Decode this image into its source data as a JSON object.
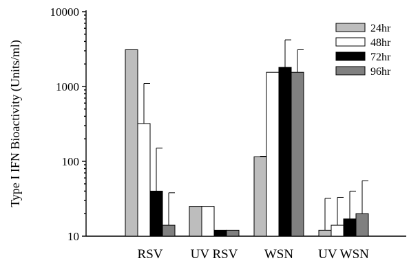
{
  "chart_data": {
    "type": "bar",
    "title": "",
    "xlabel": "",
    "ylabel": "Type I IFN Bioactivity (Units/ml)",
    "y_scale": "log",
    "ylim": [
      10,
      10000
    ],
    "y_ticks": [
      10,
      100,
      1000,
      10000
    ],
    "y_tick_labels": [
      "10",
      "100",
      "1000",
      "10000"
    ],
    "grid": false,
    "legend_position": "top-right",
    "categories": [
      "RSV",
      "UV RSV",
      "WSN",
      "UV WSN"
    ],
    "series": [
      {
        "name": "24hr",
        "color": "#bdbdbd",
        "values": [
          3100,
          25,
          115,
          12
        ],
        "error_upper": [
          null,
          null,
          117,
          32
        ]
      },
      {
        "name": "48hr",
        "color": "#ffffff",
        "values": [
          320,
          25,
          1550,
          14
        ],
        "error_upper": [
          1100,
          null,
          null,
          33
        ]
      },
      {
        "name": "72hr",
        "color": "#000000",
        "values": [
          40,
          12,
          1800,
          17
        ],
        "error_upper": [
          150,
          null,
          4200,
          40
        ]
      },
      {
        "name": "96hr",
        "color": "#808080",
        "values": [
          14,
          12,
          1550,
          20
        ],
        "error_upper": [
          38,
          null,
          3100,
          55
        ]
      }
    ]
  }
}
